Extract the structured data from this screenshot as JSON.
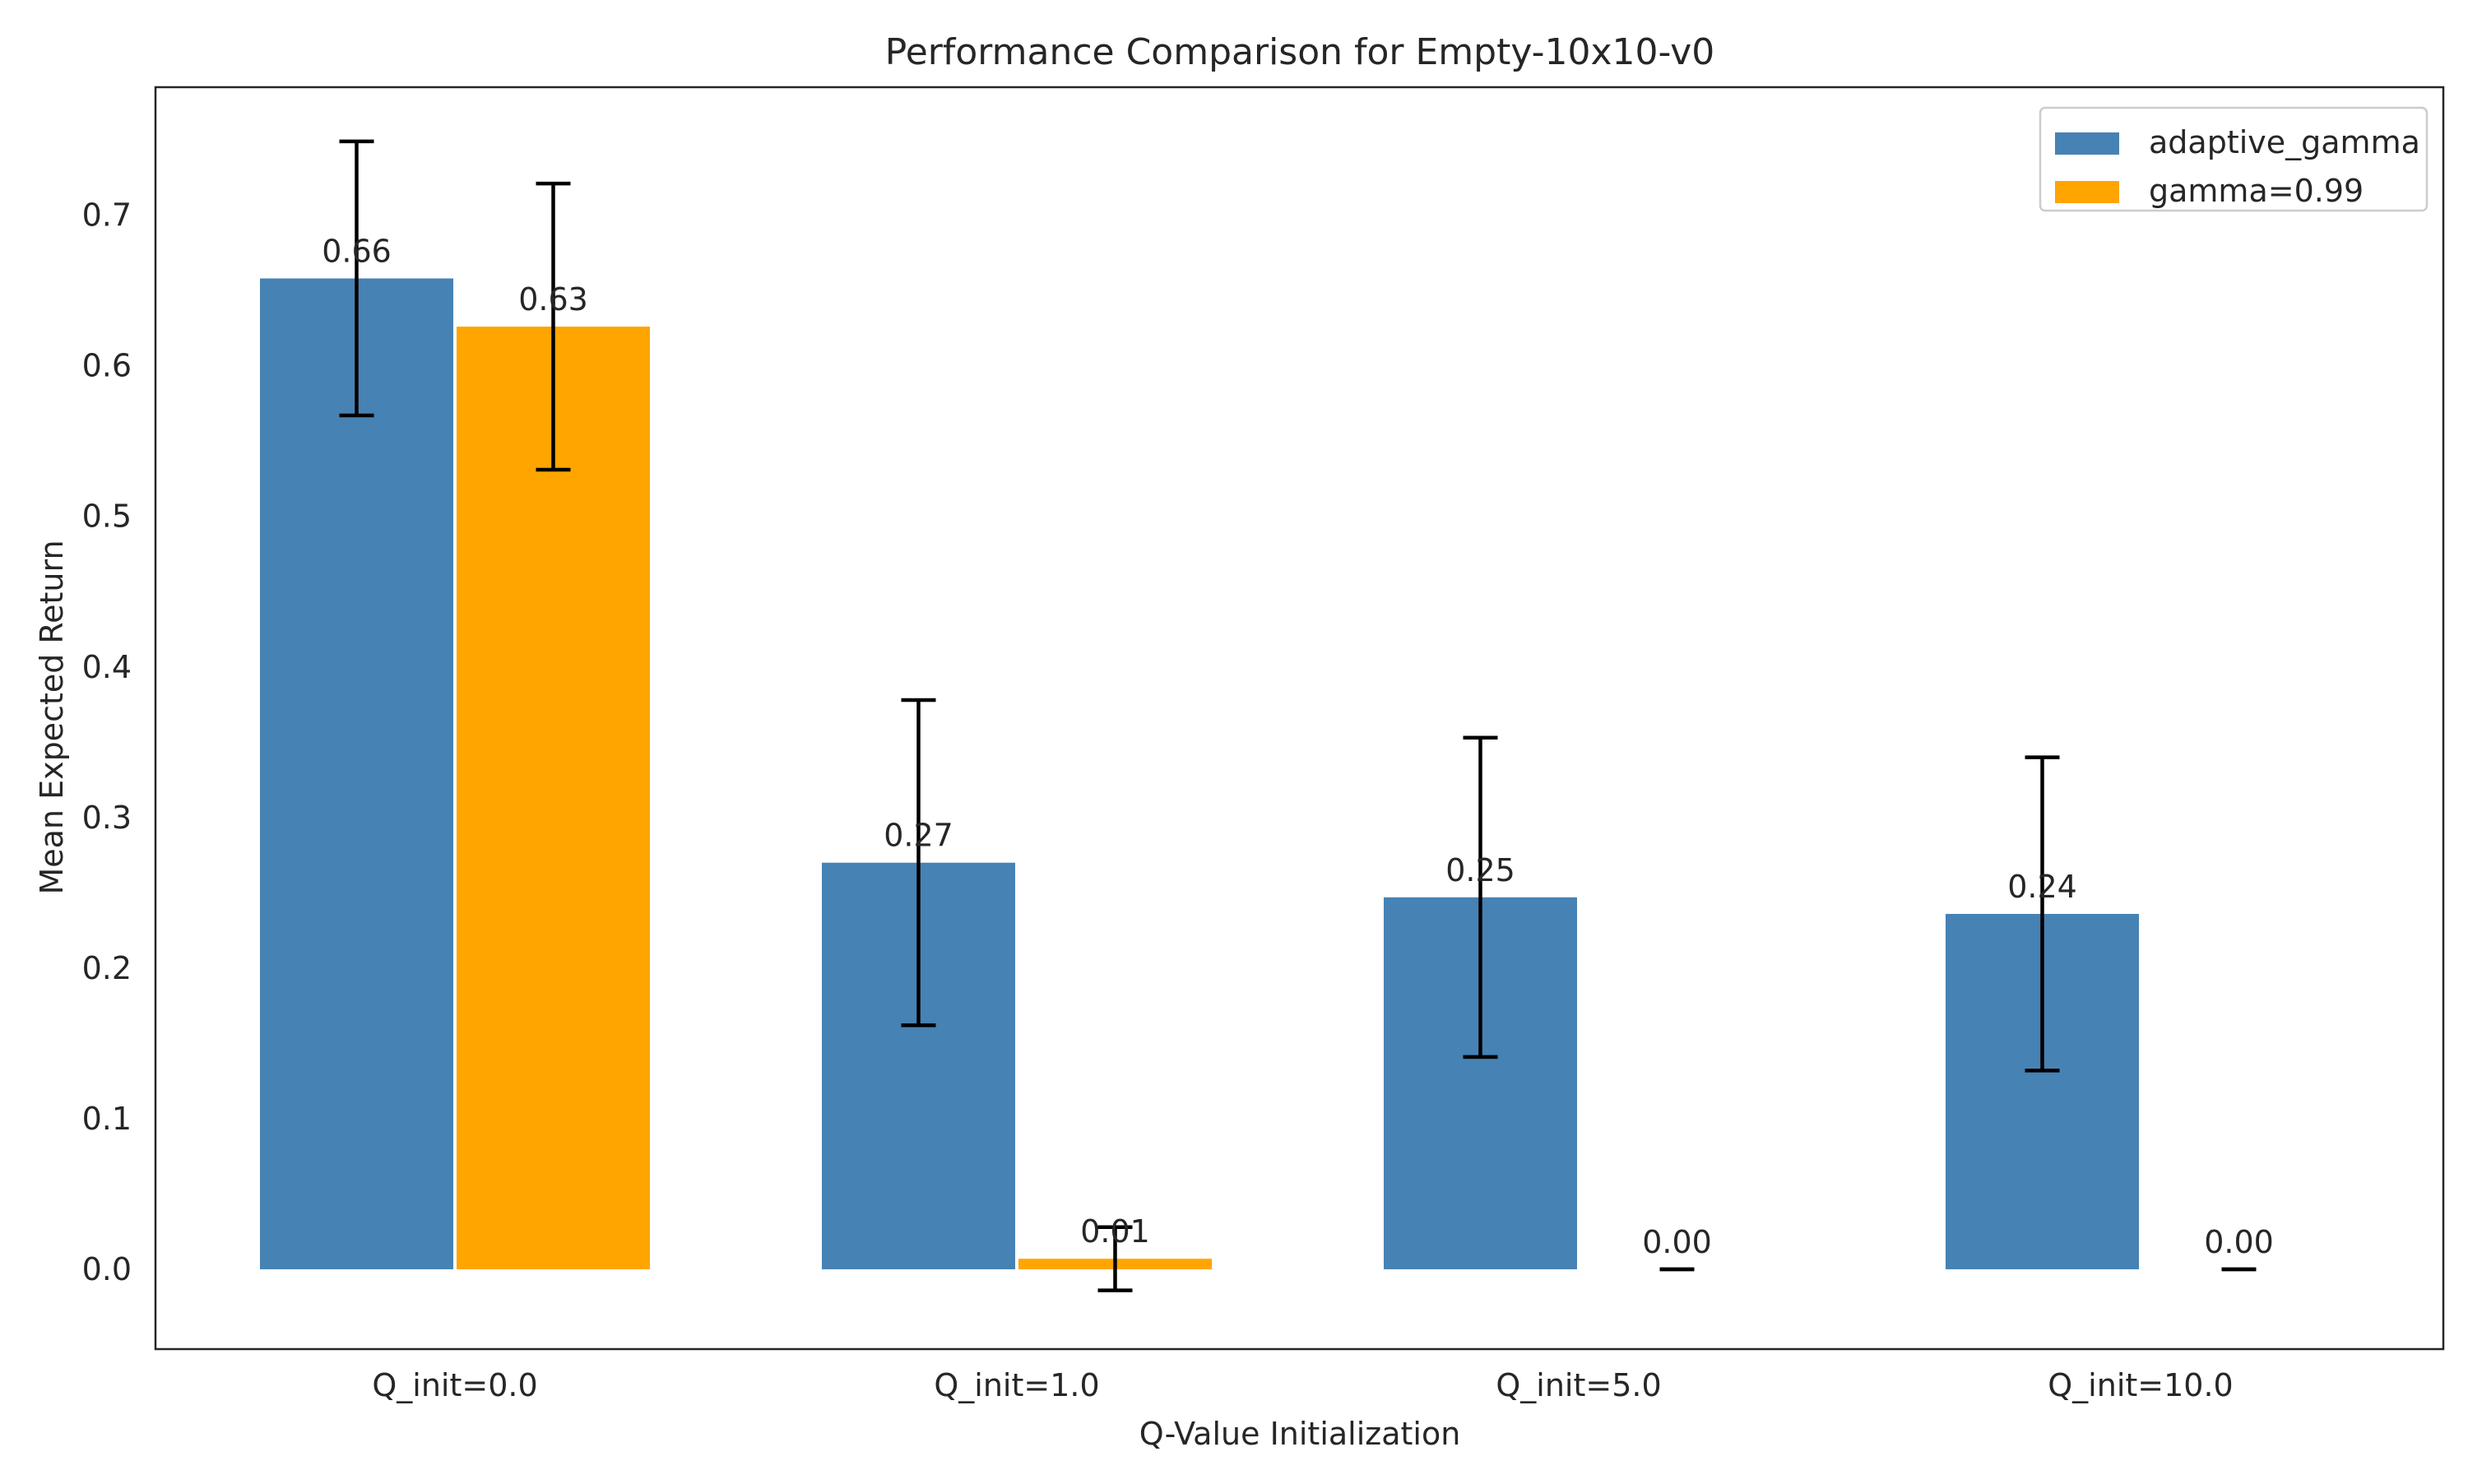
{
  "chart_data": {
    "type": "bar",
    "title": "Performance Comparison for Empty-10x10-v0",
    "xlabel": "Q-Value Initialization",
    "ylabel": "Mean Expected Return",
    "categories": [
      "Q_init=0.0",
      "Q_init=1.0",
      "Q_init=5.0",
      "Q_init=10.0"
    ],
    "series": [
      {
        "name": "adaptive_gamma",
        "color": "#4682b4",
        "values": [
          0.658,
          0.27,
          0.247,
          0.236
        ],
        "errors": [
          0.091,
          0.108,
          0.106,
          0.104
        ],
        "labels": [
          "0.66",
          "0.27",
          "0.25",
          "0.24"
        ]
      },
      {
        "name": "gamma=0.99",
        "color": "#ffa500",
        "values": [
          0.626,
          0.007,
          0.0,
          0.0
        ],
        "errors": [
          0.095,
          0.021,
          0.0,
          0.0
        ],
        "labels": [
          "0.63",
          "0.01",
          "0.00",
          "0.00"
        ]
      }
    ],
    "ylim": [
      -0.053,
      0.785
    ],
    "yticks": [
      "0.0",
      "0.1",
      "0.2",
      "0.3",
      "0.4",
      "0.5",
      "0.6",
      "0.7"
    ],
    "grid": false,
    "legend": "top-right"
  }
}
